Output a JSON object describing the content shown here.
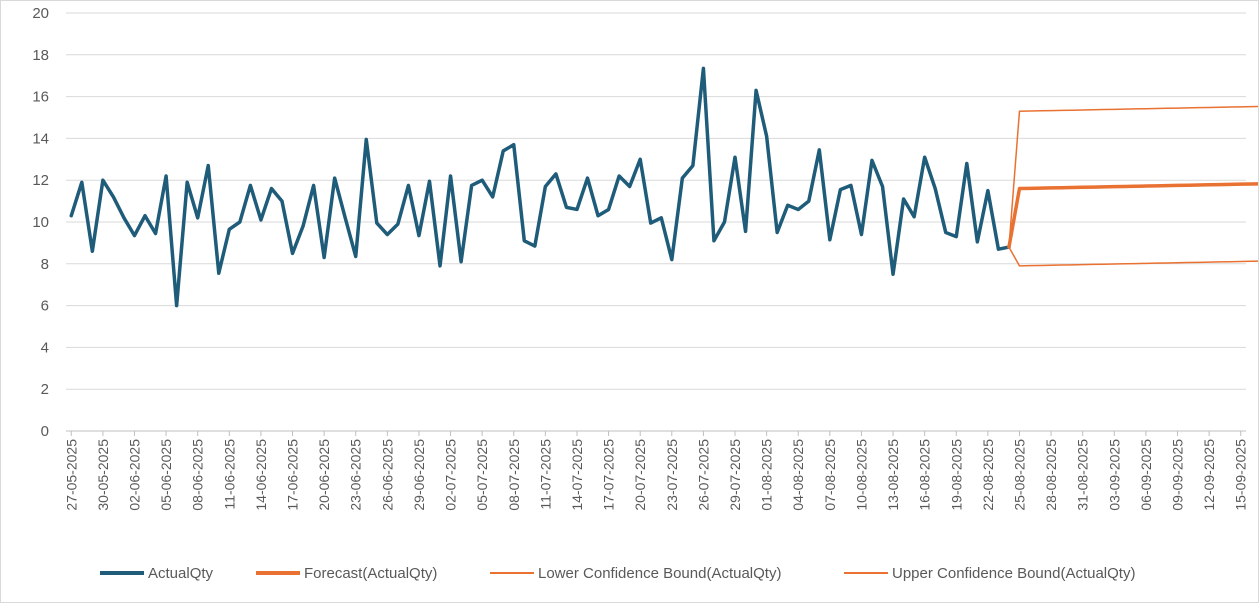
{
  "chart_data": {
    "type": "line",
    "ylim": [
      0,
      20
    ],
    "y_ticks": [
      0,
      2,
      4,
      6,
      8,
      10,
      12,
      14,
      16,
      18,
      20
    ],
    "gridlines": true,
    "legend_position": "bottom",
    "colors": {
      "actual": "#1f5c7a",
      "forecast": "#e97132",
      "bounds": "#e97132",
      "grid": "#d9d9d9",
      "axis": "#bfbfbf"
    },
    "start_date": "27-05-2025",
    "x_tick_labels": [
      "27-05-2025",
      "30-05-2025",
      "02-06-2025",
      "05-06-2025",
      "08-06-2025",
      "11-06-2025",
      "14-06-2025",
      "17-06-2025",
      "20-06-2025",
      "23-06-2025",
      "26-06-2025",
      "29-06-2025",
      "02-07-2025",
      "05-07-2025",
      "08-07-2025",
      "11-07-2025",
      "14-07-2025",
      "17-07-2025",
      "20-07-2025",
      "23-07-2025",
      "26-07-2025",
      "29-07-2025",
      "01-08-2025",
      "04-08-2025",
      "07-08-2025",
      "10-08-2025",
      "13-08-2025",
      "16-08-2025",
      "19-08-2025",
      "22-08-2025",
      "25-08-2025",
      "28-08-2025",
      "31-08-2025",
      "03-09-2025",
      "06-09-2025",
      "09-09-2025",
      "12-09-2025",
      "15-09-2025"
    ],
    "series": [
      {
        "name": "ActualQty",
        "start": "27-05-2025",
        "values": [
          10.3,
          11.9,
          8.6,
          12.0,
          11.2,
          10.2,
          9.35,
          10.3,
          9.45,
          12.2,
          6.0,
          11.9,
          10.2,
          12.7,
          7.55,
          9.65,
          10.0,
          11.75,
          10.1,
          11.6,
          11.0,
          8.5,
          9.8,
          11.75,
          8.3,
          12.1,
          10.2,
          8.35,
          13.95,
          9.95,
          9.4,
          9.9,
          11.75,
          9.35,
          11.95,
          7.9,
          12.2,
          8.1,
          11.75,
          12.0,
          11.2,
          13.4,
          13.7,
          9.1,
          8.85,
          11.7,
          12.3,
          10.7,
          10.6,
          12.1,
          10.3,
          10.6,
          12.2,
          11.7,
          13.0,
          9.95,
          10.2,
          8.2,
          12.1,
          12.7,
          17.35,
          9.1,
          10.0,
          13.1,
          9.55,
          16.3,
          14.1,
          9.5,
          10.8,
          10.6,
          11.0,
          13.45,
          9.15,
          11.55,
          11.75,
          9.4,
          12.95,
          11.7,
          7.5,
          11.1,
          10.25,
          13.1,
          11.6,
          9.5,
          9.3,
          12.8,
          9.05,
          11.5,
          8.7,
          8.8
        ]
      },
      {
        "name": "Forecast(ActualQty)",
        "start": "24-08-2025",
        "values": [
          8.8,
          11.6,
          11.61,
          11.62,
          11.63,
          11.64,
          11.65,
          11.66,
          11.67,
          11.68,
          11.69,
          11.7,
          11.71,
          11.72,
          11.73,
          11.74,
          11.75,
          11.76,
          11.77,
          11.78,
          11.79,
          11.8,
          11.81,
          11.82,
          11.83,
          11.84,
          11.85,
          11.86,
          11.87,
          11.88,
          11.89
        ]
      },
      {
        "name": "Lower Confidence Bound(ActualQty)",
        "start": "24-08-2025",
        "values": [
          8.8,
          7.9,
          7.91,
          7.92,
          7.93,
          7.94,
          7.95,
          7.96,
          7.97,
          7.98,
          7.99,
          8.0,
          8.01,
          8.02,
          8.03,
          8.04,
          8.05,
          8.06,
          8.07,
          8.08,
          8.09,
          8.1,
          8.11,
          8.12,
          8.13,
          8.14,
          8.15,
          8.16,
          8.17,
          8.18,
          8.19
        ]
      },
      {
        "name": "Upper Confidence Bound(ActualQty)",
        "start": "24-08-2025",
        "values": [
          8.8,
          15.3,
          15.31,
          15.32,
          15.33,
          15.34,
          15.35,
          15.36,
          15.37,
          15.38,
          15.39,
          15.4,
          15.41,
          15.42,
          15.43,
          15.44,
          15.45,
          15.46,
          15.47,
          15.48,
          15.49,
          15.5,
          15.51,
          15.52,
          15.53,
          15.54,
          15.55,
          15.56,
          15.57,
          15.58,
          15.59
        ]
      }
    ]
  }
}
